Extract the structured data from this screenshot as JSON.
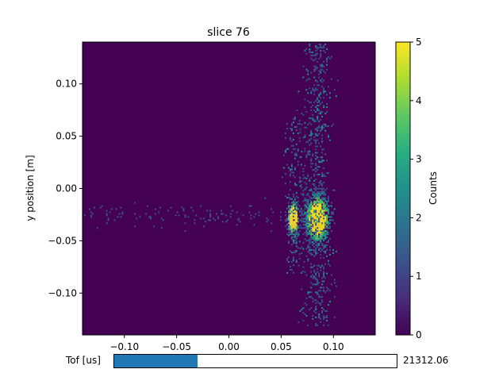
{
  "chart_data": {
    "type": "heatmap",
    "title": "slice 76",
    "xlabel": "",
    "ylabel": "y position [m]",
    "xlim": [
      -0.14,
      0.14
    ],
    "ylim": [
      -0.14,
      0.14
    ],
    "x_ticks": [
      -0.1,
      -0.05,
      0.0,
      0.05,
      0.1
    ],
    "x_tick_labels": [
      "−0.10",
      "−0.05",
      "0.00",
      "0.05",
      "0.10"
    ],
    "y_ticks": [
      0.1,
      0.05,
      0.0,
      -0.05,
      -0.1
    ],
    "y_tick_labels": [
      "0.10",
      "0.05",
      "0.00",
      "−0.05",
      "−0.10"
    ],
    "colormap": "viridis",
    "colorbar": {
      "label": "Counts",
      "min": 0,
      "max": 5,
      "ticks": [
        0,
        1,
        2,
        3,
        4,
        5
      ],
      "tick_labels": [
        "0",
        "1",
        "2",
        "3",
        "4",
        "5"
      ]
    },
    "features": [
      {
        "kind": "blob",
        "x": 0.061,
        "y": -0.028,
        "sx": 0.004,
        "sy": 0.012,
        "value": 5
      },
      {
        "kind": "blob",
        "x": 0.084,
        "y": -0.028,
        "sx": 0.008,
        "sy": 0.016,
        "value": 5
      },
      {
        "kind": "band",
        "x": 0.061,
        "sx": 0.004,
        "y_range": [
          -0.08,
          0.07
        ],
        "density": 0.25
      },
      {
        "kind": "band",
        "x": 0.084,
        "sx": 0.007,
        "y_range": [
          -0.13,
          0.14
        ],
        "density": 0.3
      },
      {
        "kind": "band",
        "x": 0.072,
        "sx": 0.003,
        "y_range": [
          -0.06,
          0.05
        ],
        "density": 0.1
      },
      {
        "kind": "horizontal_streak",
        "y": -0.025,
        "sy": 0.006,
        "x_range": [
          -0.14,
          0.05
        ],
        "density": 0.08
      }
    ],
    "background_value": 0
  },
  "slider": {
    "label": "Tof [us]",
    "value": "21312.06",
    "fraction": 0.295
  },
  "colors": {
    "background": "#440154",
    "slider_fill": "#1f77b4"
  }
}
